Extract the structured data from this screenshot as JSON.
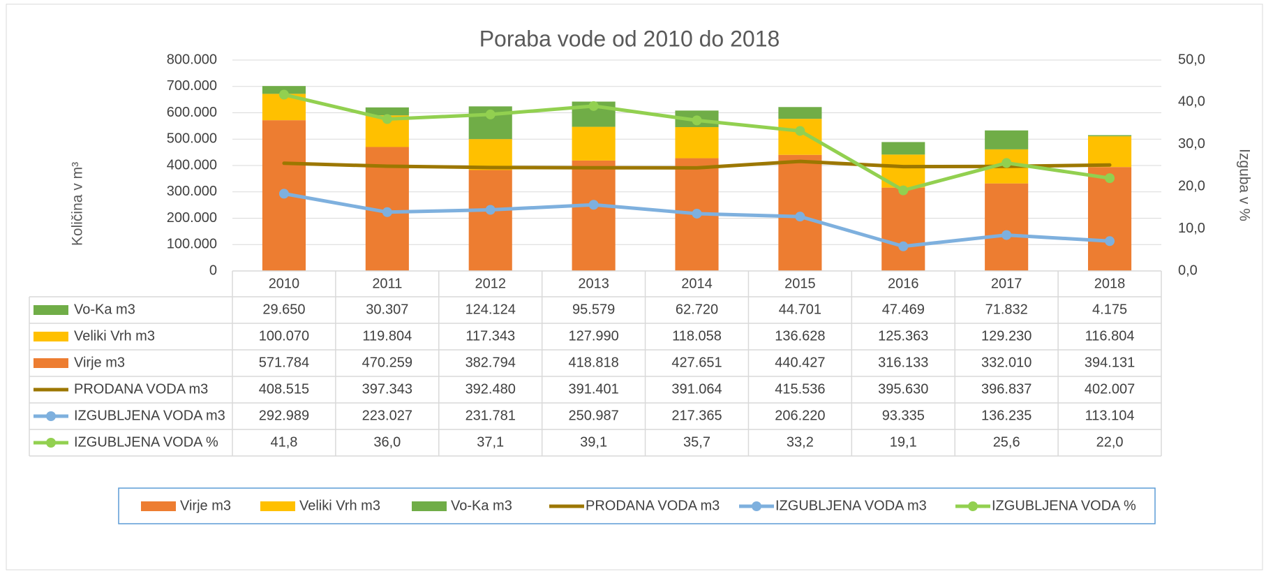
{
  "chart_data": {
    "type": "bar",
    "title": "Poraba vode od 2010 do 2018",
    "ylabel": "Količina v m³",
    "y2label": "Izguba v %",
    "categories": [
      "2010",
      "2011",
      "2012",
      "2013",
      "2014",
      "2015",
      "2016",
      "2017",
      "2018"
    ],
    "ylim": [
      0,
      800000
    ],
    "yticks": [
      0,
      {
        "value": 100000,
        "label": "100.000"
      },
      {
        "value": 200000,
        "label": "200.000"
      },
      {
        "value": 300000,
        "label": "300.000"
      },
      {
        "value": 400000,
        "label": "400.000"
      },
      {
        "value": 500000,
        "label": "500.000"
      },
      {
        "value": 600000,
        "label": "600.000"
      },
      {
        "value": 700000,
        "label": "700.000"
      },
      {
        "value": 800000,
        "label": "800.000"
      }
    ],
    "y2lim": [
      0,
      50
    ],
    "y2ticks": [
      {
        "value": 0,
        "label": "0,0"
      },
      {
        "value": 10,
        "label": "10,0"
      },
      {
        "value": 20,
        "label": "20,0"
      },
      {
        "value": 30,
        "label": "30,0"
      },
      {
        "value": 40,
        "label": "40,0"
      },
      {
        "value": 50,
        "label": "50,0"
      }
    ],
    "grid": true,
    "stacked": true,
    "legend": "bottom",
    "series": [
      {
        "name": "Virje m3",
        "type": "bar",
        "color": "#ED7D31",
        "values": [
          571784,
          470259,
          382794,
          418818,
          427651,
          440427,
          316133,
          332010,
          394131
        ],
        "value_labels": [
          "571.784",
          "470.259",
          "382.794",
          "418.818",
          "427.651",
          "440.427",
          "316.133",
          "332.010",
          "394.131"
        ]
      },
      {
        "name": "Veliki Vrh m3",
        "type": "bar",
        "color": "#FFC000",
        "values": [
          100070,
          119804,
          117343,
          127990,
          118058,
          136628,
          125363,
          129230,
          116804
        ],
        "value_labels": [
          "100.070",
          "119.804",
          "117.343",
          "127.990",
          "118.058",
          "136.628",
          "125.363",
          "129.230",
          "116.804"
        ]
      },
      {
        "name": "Vo-Ka m3",
        "type": "bar",
        "color": "#70AD47",
        "values": [
          29650,
          30307,
          124124,
          95579,
          62720,
          44701,
          47469,
          71832,
          4175
        ],
        "value_labels": [
          "29.650",
          "30.307",
          "124.124",
          "95.579",
          "62.720",
          "44.701",
          "47.469",
          "71.832",
          "4.175"
        ]
      },
      {
        "name": "PRODANA VODA m3",
        "type": "line",
        "color": "#9C7700",
        "values": [
          408515,
          397343,
          392480,
          391401,
          391064,
          415536,
          395630,
          396837,
          402007
        ],
        "value_labels": [
          "408.515",
          "397.343",
          "392.480",
          "391.401",
          "391.064",
          "415.536",
          "395.630",
          "396.837",
          "402.007"
        ]
      },
      {
        "name": "IZGUBLJENA VODA m3",
        "type": "line",
        "marker": "circle",
        "color": "#7EB0DE",
        "values": [
          292989,
          223027,
          231781,
          250987,
          217365,
          206220,
          93335,
          136235,
          113104
        ],
        "value_labels": [
          "292.989",
          "223.027",
          "231.781",
          "250.987",
          "217.365",
          "206.220",
          "93.335",
          "136.235",
          "113.104"
        ]
      },
      {
        "name": "IZGUBLJENA VODA %",
        "type": "line",
        "marker": "circle",
        "axis": "y2",
        "color": "#92D050",
        "values": [
          41.8,
          36.0,
          37.1,
          39.1,
          35.7,
          33.2,
          19.1,
          25.6,
          22.0
        ],
        "value_labels": [
          "41,8",
          "36,0",
          "37,1",
          "39,1",
          "35,7",
          "33,2",
          "19,1",
          "25,6",
          "22,0"
        ]
      }
    ]
  }
}
